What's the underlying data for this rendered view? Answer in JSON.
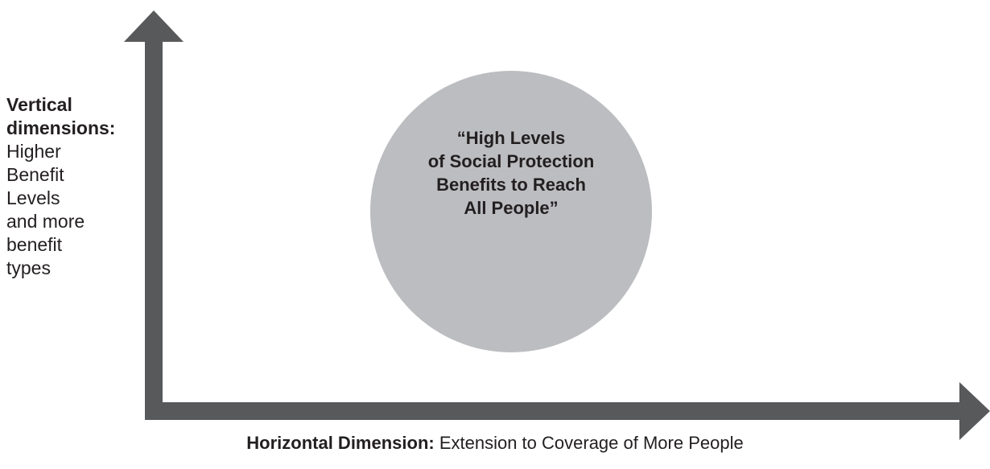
{
  "diagram": {
    "colors": {
      "axis": "#58595b",
      "circle": "#bcbdc0",
      "text": "#231f20"
    },
    "vertical_axis": {
      "title": "Vertical dimensions:",
      "lines": [
        "Higher",
        "Benefit",
        "Levels",
        "and more",
        "benefit",
        "types"
      ]
    },
    "horizontal_axis": {
      "title": "Horizontal Dimension:",
      "text": "Extension to Coverage of More People"
    },
    "circle": {
      "lines": [
        "“High Levels",
        "of Social Protection",
        "Benefits to Reach",
        "All People”"
      ]
    }
  }
}
